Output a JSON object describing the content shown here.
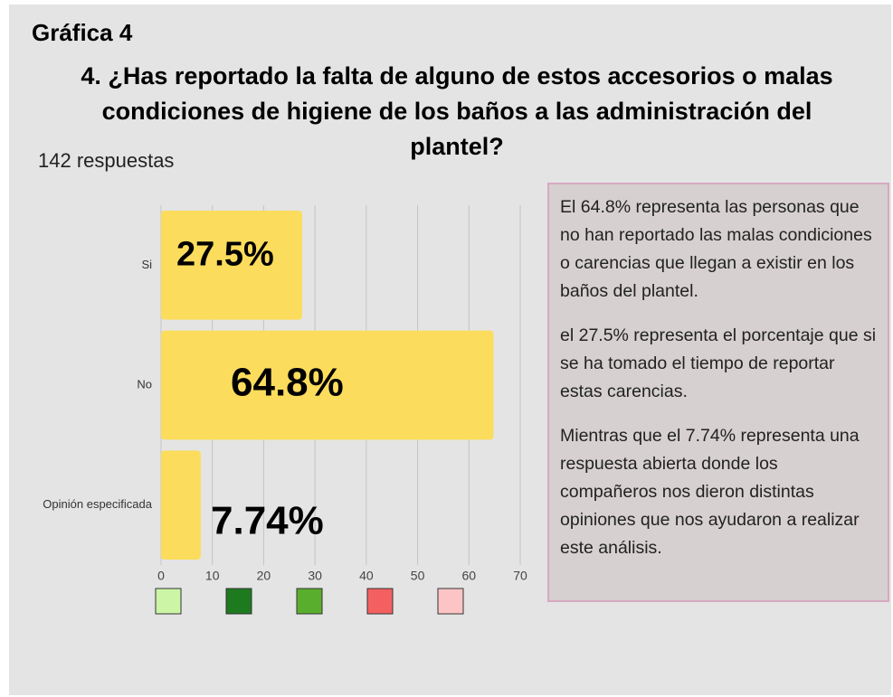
{
  "chart_data": {
    "type": "bar",
    "orientation": "horizontal",
    "label": "Gráfica 4",
    "title": "4.  ¿Has reportado la falta de alguno de estos accesorios o malas condiciones de higiene de los baños a las administración del plantel?",
    "subtitle": "142 respuestas",
    "categories": [
      "Si",
      "No",
      "Opinión especificada"
    ],
    "values": [
      27.5,
      64.8,
      7.74
    ],
    "value_labels": [
      "27.5%",
      "64.8%",
      "7.74%"
    ],
    "color": "#fcdc5c",
    "xlim": [
      0,
      70
    ],
    "xticks": [
      0,
      10,
      20,
      30,
      40,
      50,
      60,
      70
    ],
    "grid": true,
    "swatch_colors": [
      "#ccf5a6",
      "#1e7a1e",
      "#5aae2e",
      "#f46060",
      "#fcc4c4"
    ],
    "notes": [
      "El 64.8%  representa las personas que no han reportado las malas condiciones o carencias que llegan a existir en los baños del plantel.",
      "el 27.5% representa el porcentaje que si se ha tomado el tiempo de reportar estas carencias.",
      "Mientras que el 7.74% representa una respuesta abierta donde los compañeros nos dieron distintas opiniones que nos ayudaron a realizar este análisis."
    ]
  }
}
